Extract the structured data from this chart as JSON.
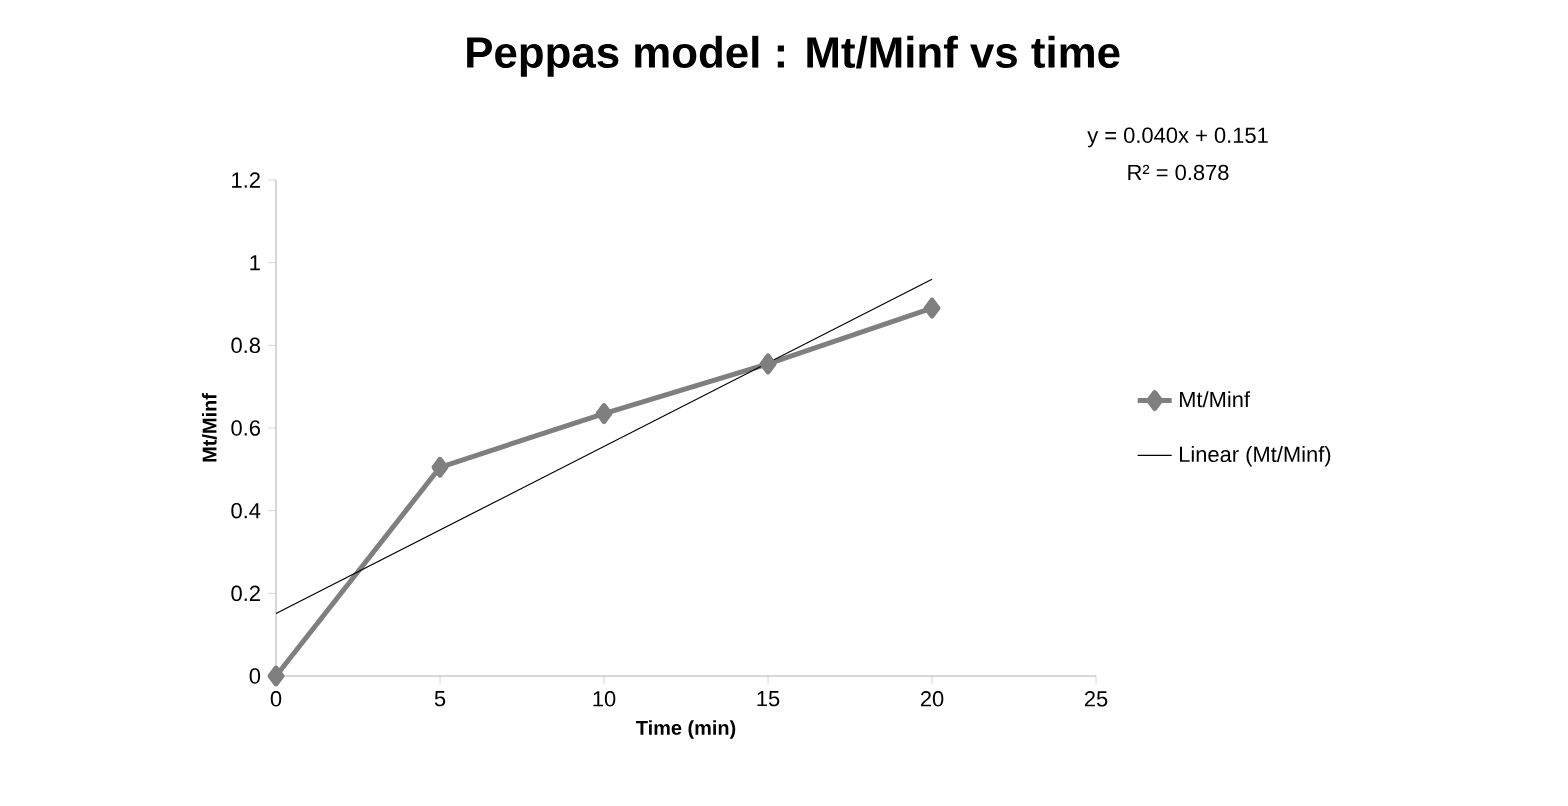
{
  "chart_data": {
    "type": "line",
    "title": "Peppas model : Mt/Minf vs time",
    "xlabel": "Time (min)",
    "ylabel": "Mt/Minf",
    "annotations": [
      "y = 0.040x + 0.151",
      "R² = 0.878"
    ],
    "xlim": [
      0,
      25
    ],
    "ylim": [
      0,
      1.2
    ],
    "xticks": [
      0,
      5,
      10,
      15,
      20,
      25
    ],
    "yticks": [
      0,
      0.2,
      0.4,
      0.6,
      0.8,
      1,
      1.2
    ],
    "legend": "right",
    "grid": false,
    "series": [
      {
        "name": "Mt/Minf",
        "color": "#7f7f7f",
        "marker": "diamond",
        "line_style": "solid",
        "x": [
          0,
          5,
          10,
          15,
          20
        ],
        "values": [
          0,
          0.505,
          0.635,
          0.755,
          0.89
        ]
      },
      {
        "name": "Linear (Mt/Minf)",
        "color": "#000000",
        "marker": "none",
        "line_style": "solid",
        "x": [
          0,
          20
        ],
        "values": [
          0.151,
          0.96
        ]
      }
    ]
  }
}
